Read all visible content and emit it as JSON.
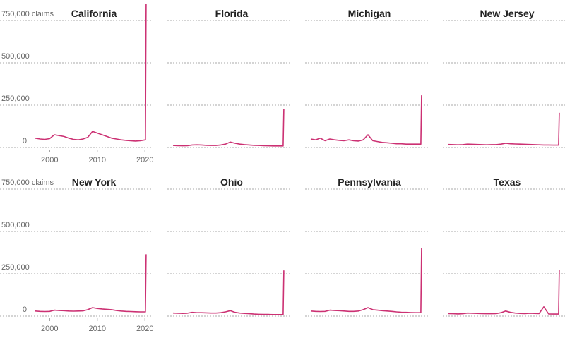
{
  "chart_data": {
    "type": "line",
    "x": [
      1997,
      1998,
      1999,
      2000,
      2001,
      2002,
      2003,
      2004,
      2005,
      2006,
      2007,
      2008,
      2009,
      2010,
      2011,
      2012,
      2013,
      2014,
      2015,
      2016,
      2017,
      2018,
      2019,
      2020.1,
      2020.25
    ],
    "xlim": [
      1997,
      2021
    ],
    "xticks": [
      2000,
      2010,
      2020
    ],
    "ylim": [
      0,
      850000
    ],
    "yticks": [
      0,
      {
        "value": 250000,
        "label": "250,000"
      },
      {
        "value": 500000,
        "label": "500,000"
      },
      {
        "value": 750000,
        "label": "750,000 claims"
      }
    ],
    "grid": true,
    "series": [
      {
        "name": "California",
        "color": "#cc3173",
        "values": [
          55000,
          50000,
          48000,
          52000,
          75000,
          70000,
          65000,
          55000,
          48000,
          45000,
          50000,
          60000,
          95000,
          85000,
          75000,
          65000,
          55000,
          50000,
          45000,
          42000,
          40000,
          38000,
          40000,
          45000,
          850000
        ]
      },
      {
        "name": "Florida",
        "color": "#cc3173",
        "values": [
          12000,
          11000,
          10000,
          11000,
          15000,
          16000,
          15000,
          13000,
          12000,
          12000,
          15000,
          20000,
          32000,
          25000,
          20000,
          17000,
          15000,
          13000,
          12000,
          11000,
          10000,
          9000,
          9000,
          9000,
          228000
        ]
      },
      {
        "name": "Michigan",
        "color": "#cc3173",
        "values": [
          50000,
          45000,
          55000,
          40000,
          50000,
          45000,
          42000,
          40000,
          45000,
          40000,
          38000,
          45000,
          75000,
          40000,
          35000,
          30000,
          28000,
          25000,
          22000,
          22000,
          20000,
          20000,
          20000,
          20000,
          308000
        ]
      },
      {
        "name": "New Jersey",
        "color": "#cc3173",
        "values": [
          18000,
          17000,
          16000,
          17000,
          20000,
          19000,
          18000,
          17000,
          16000,
          17000,
          17000,
          20000,
          25000,
          22000,
          21000,
          20000,
          19000,
          18000,
          17000,
          16000,
          15000,
          15000,
          14000,
          14000,
          205000
        ]
      },
      {
        "name": "New York",
        "color": "#cc3173",
        "values": [
          30000,
          28000,
          27000,
          28000,
          35000,
          33000,
          32000,
          30000,
          29000,
          30000,
          31000,
          38000,
          50000,
          45000,
          42000,
          40000,
          38000,
          33000,
          30000,
          28000,
          27000,
          26000,
          25000,
          25000,
          365000
        ]
      },
      {
        "name": "Ohio",
        "color": "#cc3173",
        "values": [
          18000,
          17000,
          16000,
          17000,
          22000,
          20000,
          20000,
          19000,
          18000,
          18000,
          20000,
          25000,
          32000,
          22000,
          18000,
          16000,
          14000,
          12000,
          11000,
          10000,
          10000,
          9000,
          9000,
          9000,
          270000
        ]
      },
      {
        "name": "Pennsylvania",
        "color": "#cc3173",
        "values": [
          30000,
          28000,
          27000,
          28000,
          35000,
          33000,
          32000,
          30000,
          28000,
          28000,
          30000,
          38000,
          50000,
          38000,
          35000,
          32000,
          30000,
          28000,
          25000,
          23000,
          22000,
          21000,
          20000,
          20000,
          400000
        ]
      },
      {
        "name": "Texas",
        "color": "#cc3173",
        "values": [
          15000,
          14000,
          13000,
          14000,
          18000,
          17000,
          16000,
          15000,
          14000,
          14000,
          15000,
          20000,
          30000,
          22000,
          18000,
          16000,
          15000,
          17000,
          16000,
          15000,
          55000,
          13000,
          12000,
          12000,
          275000
        ]
      }
    ]
  }
}
